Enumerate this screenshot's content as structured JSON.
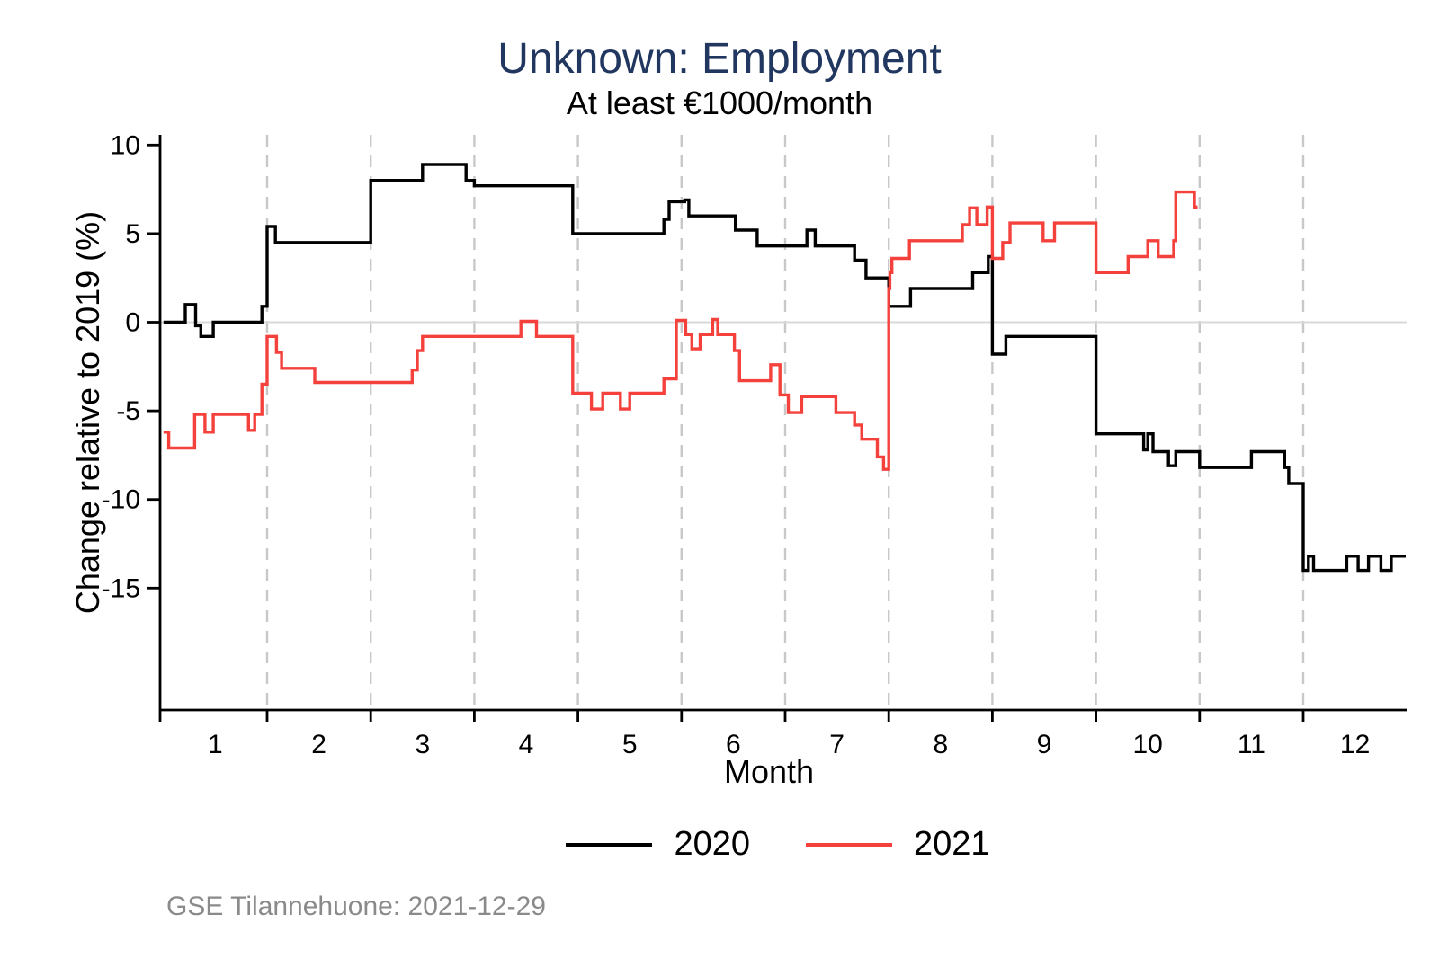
{
  "chart_data": {
    "type": "line",
    "step": true,
    "title": "Unknown: Employment",
    "subtitle": "At least €1000/month",
    "xlabel": "Month",
    "ylabel": "Change relative to 2019 (%)",
    "x_ticks": [
      1,
      2,
      3,
      4,
      5,
      6,
      7,
      8,
      9,
      10,
      11,
      12
    ],
    "y_ticks": [
      10,
      5,
      0,
      -5,
      -10,
      -15
    ],
    "xlim": [
      0.5,
      12.5
    ],
    "ylim": [
      -15.5,
      10.5
    ],
    "x_gridlines": [
      1.5,
      2.5,
      3.5,
      4.5,
      5.5,
      6.5,
      7.5,
      8.5,
      9.5,
      10.5,
      11.5
    ],
    "zero_line": 0,
    "grid": "vertical-dashed",
    "legend_position": "bottom-center",
    "series": [
      {
        "name": "2020",
        "color": "#000000",
        "x_end": 12.49,
        "points": [
          [
            0.5,
            0.0
          ],
          [
            0.71,
            1.0
          ],
          [
            0.81,
            -0.2
          ],
          [
            0.86,
            -0.8
          ],
          [
            0.98,
            0.0
          ],
          [
            1.45,
            0.9
          ],
          [
            1.5,
            5.4
          ],
          [
            1.58,
            4.5
          ],
          [
            2.5,
            8.0
          ],
          [
            3.0,
            8.9
          ],
          [
            3.42,
            8.0
          ],
          [
            3.5,
            7.7
          ],
          [
            4.45,
            5.0
          ],
          [
            5.33,
            5.8
          ],
          [
            5.38,
            6.8
          ],
          [
            5.53,
            6.9
          ],
          [
            5.57,
            6.0
          ],
          [
            6.02,
            5.2
          ],
          [
            6.23,
            4.3
          ],
          [
            6.71,
            5.2
          ],
          [
            6.79,
            4.3
          ],
          [
            7.17,
            3.5
          ],
          [
            7.28,
            2.5
          ],
          [
            7.5,
            0.9
          ],
          [
            7.71,
            1.9
          ],
          [
            8.31,
            2.8
          ],
          [
            8.46,
            3.7
          ],
          [
            8.5,
            -1.8
          ],
          [
            8.63,
            -0.8
          ],
          [
            9.5,
            -6.3
          ],
          [
            9.96,
            -7.2
          ],
          [
            10.0,
            -6.3
          ],
          [
            10.05,
            -7.3
          ],
          [
            10.2,
            -8.1
          ],
          [
            10.27,
            -7.3
          ],
          [
            10.5,
            -8.2
          ],
          [
            11.0,
            -7.3
          ],
          [
            11.32,
            -8.2
          ],
          [
            11.36,
            -9.1
          ],
          [
            11.5,
            -14.0
          ],
          [
            11.55,
            -13.2
          ],
          [
            11.6,
            -14.0
          ],
          [
            11.92,
            -13.2
          ],
          [
            12.03,
            -14.0
          ],
          [
            12.13,
            -13.2
          ],
          [
            12.25,
            -14.0
          ],
          [
            12.35,
            -13.2
          ]
        ]
      },
      {
        "name": "2021",
        "color": "#f5413c",
        "x_end": 10.48,
        "points": [
          [
            0.5,
            -6.2
          ],
          [
            0.55,
            -7.1
          ],
          [
            0.8,
            -5.2
          ],
          [
            0.9,
            -6.2
          ],
          [
            0.98,
            -5.2
          ],
          [
            1.32,
            -6.1
          ],
          [
            1.38,
            -5.2
          ],
          [
            1.45,
            -3.5
          ],
          [
            1.5,
            -0.8
          ],
          [
            1.59,
            -1.7
          ],
          [
            1.64,
            -2.6
          ],
          [
            1.96,
            -3.4
          ],
          [
            2.9,
            -2.7
          ],
          [
            2.95,
            -1.6
          ],
          [
            3.0,
            -0.8
          ],
          [
            3.95,
            0.05
          ],
          [
            4.1,
            -0.8
          ],
          [
            4.45,
            -4.0
          ],
          [
            4.63,
            -4.9
          ],
          [
            4.74,
            -4.0
          ],
          [
            4.91,
            -4.9
          ],
          [
            5.0,
            -4.0
          ],
          [
            5.33,
            -3.2
          ],
          [
            5.45,
            0.1
          ],
          [
            5.54,
            -0.7
          ],
          [
            5.6,
            -1.5
          ],
          [
            5.68,
            -0.7
          ],
          [
            5.8,
            0.15
          ],
          [
            5.85,
            -0.7
          ],
          [
            6.01,
            -1.6
          ],
          [
            6.06,
            -3.3
          ],
          [
            6.36,
            -2.4
          ],
          [
            6.45,
            -4.1
          ],
          [
            6.53,
            -5.1
          ],
          [
            6.66,
            -4.2
          ],
          [
            6.99,
            -5.1
          ],
          [
            7.17,
            -5.8
          ],
          [
            7.24,
            -6.6
          ],
          [
            7.39,
            -7.6
          ],
          [
            7.45,
            -8.3
          ],
          [
            7.5,
            1.9
          ],
          [
            7.51,
            2.8
          ],
          [
            7.53,
            3.6
          ],
          [
            7.7,
            4.6
          ],
          [
            8.21,
            5.5
          ],
          [
            8.28,
            6.45
          ],
          [
            8.35,
            5.5
          ],
          [
            8.45,
            6.5
          ],
          [
            8.5,
            3.6
          ],
          [
            8.6,
            4.5
          ],
          [
            8.67,
            5.6
          ],
          [
            8.99,
            4.6
          ],
          [
            9.1,
            5.6
          ],
          [
            9.5,
            2.8
          ],
          [
            9.81,
            3.7
          ],
          [
            10.0,
            4.6
          ],
          [
            10.1,
            3.7
          ],
          [
            10.25,
            4.6
          ],
          [
            10.27,
            7.35
          ],
          [
            10.45,
            6.5
          ]
        ]
      }
    ]
  },
  "footer": "GSE Tilannehuone: 2021-12-29",
  "colors": {
    "title": "#223760",
    "axis": "#000000",
    "gridline": "#c8c8c8",
    "zero_line": "#d9d9d9",
    "tick_label": "#000000",
    "footer_text": "#8a8a8a"
  }
}
